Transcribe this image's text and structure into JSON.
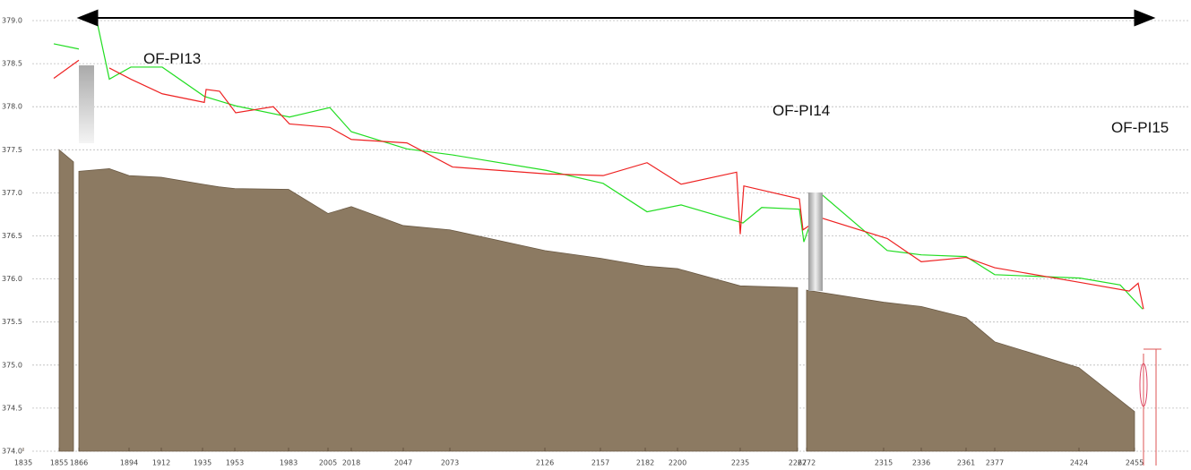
{
  "chart_data": {
    "type": "profile",
    "xlim": [
      1835,
      2486
    ],
    "ylim": [
      374,
      379
    ],
    "yticks": [
      {
        "value": 374,
        "label": "374.0"
      },
      374.5,
      {
        "value": 375,
        "label": "375.0"
      },
      375.5,
      {
        "value": 376,
        "label": "376.0"
      },
      376.5,
      {
        "value": 377,
        "label": "377.0"
      },
      377.5,
      {
        "value": 378,
        "label": "378.0"
      },
      378.5,
      {
        "value": 379,
        "label": "379.0"
      }
    ],
    "xticks": [
      1835,
      1855,
      1866,
      1894,
      1912,
      1935,
      1953,
      1983,
      2005,
      2018,
      2047,
      2073,
      2126,
      2157,
      2182,
      2200,
      2235,
      2267,
      2272,
      2315,
      2336,
      2361,
      2377,
      2424,
      2455
    ],
    "grid": true,
    "annotations": [
      {
        "text": "OF-PI13",
        "x": 1902,
        "y": 378.5
      },
      {
        "text": "OF-PI14",
        "x": 2253,
        "y": 377.9
      },
      {
        "text": "OF-PI15",
        "x": 2442,
        "y": 377.7
      }
    ],
    "series": [
      {
        "type": "area",
        "color": "#8c7a62",
        "x": [
          1855,
          1863,
          1864,
          1866,
          1883,
          1894,
          1912,
          1935,
          1944,
          1953,
          1983,
          2005,
          2018,
          2047,
          2073,
          2126,
          2157,
          2182,
          2200,
          2235,
          2267,
          2269,
          2272,
          2315,
          2336,
          2361,
          2377,
          2424,
          2455
        ],
        "values": [
          377.5,
          377.36,
          null,
          377.25,
          377.28,
          377.2,
          377.18,
          377.1,
          377.07,
          377.05,
          377.04,
          376.76,
          376.84,
          376.62,
          376.57,
          376.33,
          376.24,
          376.15,
          376.12,
          375.92,
          375.9,
          null,
          375.87,
          375.73,
          375.68,
          375.55,
          375.27,
          374.97,
          374.46
        ]
      },
      {
        "type": "line",
        "color": "#22dd22",
        "x": [
          1852,
          1866,
          1870,
          1876,
          1883,
          1895,
          1912.5,
          1936,
          1953.5,
          1983.5,
          2006,
          2018,
          2049,
          2074.5,
          2127,
          2158.5,
          2183,
          2202,
          2236.5,
          2247,
          2268,
          2270.5,
          2280,
          2317,
          2336,
          2361,
          2377,
          2424.5,
          2447,
          2459.5
        ],
        "values": [
          378.73,
          378.67,
          null,
          379.0,
          378.32,
          378.46,
          378.46,
          378.12,
          378.01,
          377.88,
          377.99,
          377.71,
          377.51,
          377.44,
          377.26,
          377.11,
          376.78,
          376.86,
          376.65,
          376.83,
          376.81,
          376.43,
          376.99,
          376.33,
          376.28,
          376.26,
          376.05,
          376.01,
          375.93,
          375.65
        ]
      },
      {
        "type": "line",
        "color": "#ee2222",
        "x": [
          1852,
          1866,
          1870,
          1883,
          1895,
          1912.5,
          1936,
          1937,
          1944.5,
          1953.5,
          1974.5,
          1983.5,
          2006,
          2018,
          2049,
          2074.5,
          2127,
          2158.5,
          2183,
          2202,
          2233,
          2235,
          2237,
          2268,
          2270,
          2280,
          2317,
          2336,
          2361,
          2377,
          2424.5,
          2452,
          2457,
          2460
        ],
        "values": [
          378.33,
          378.54,
          null,
          378.45,
          378.32,
          378.15,
          378.05,
          378.2,
          378.18,
          377.93,
          378.0,
          377.8,
          377.76,
          377.62,
          377.58,
          377.3,
          377.22,
          377.2,
          377.35,
          377.1,
          377.24,
          376.52,
          377.08,
          376.93,
          376.57,
          376.71,
          376.47,
          376.2,
          376.25,
          376.13,
          375.96,
          375.86,
          375.95,
          375.65
        ]
      }
    ]
  }
}
